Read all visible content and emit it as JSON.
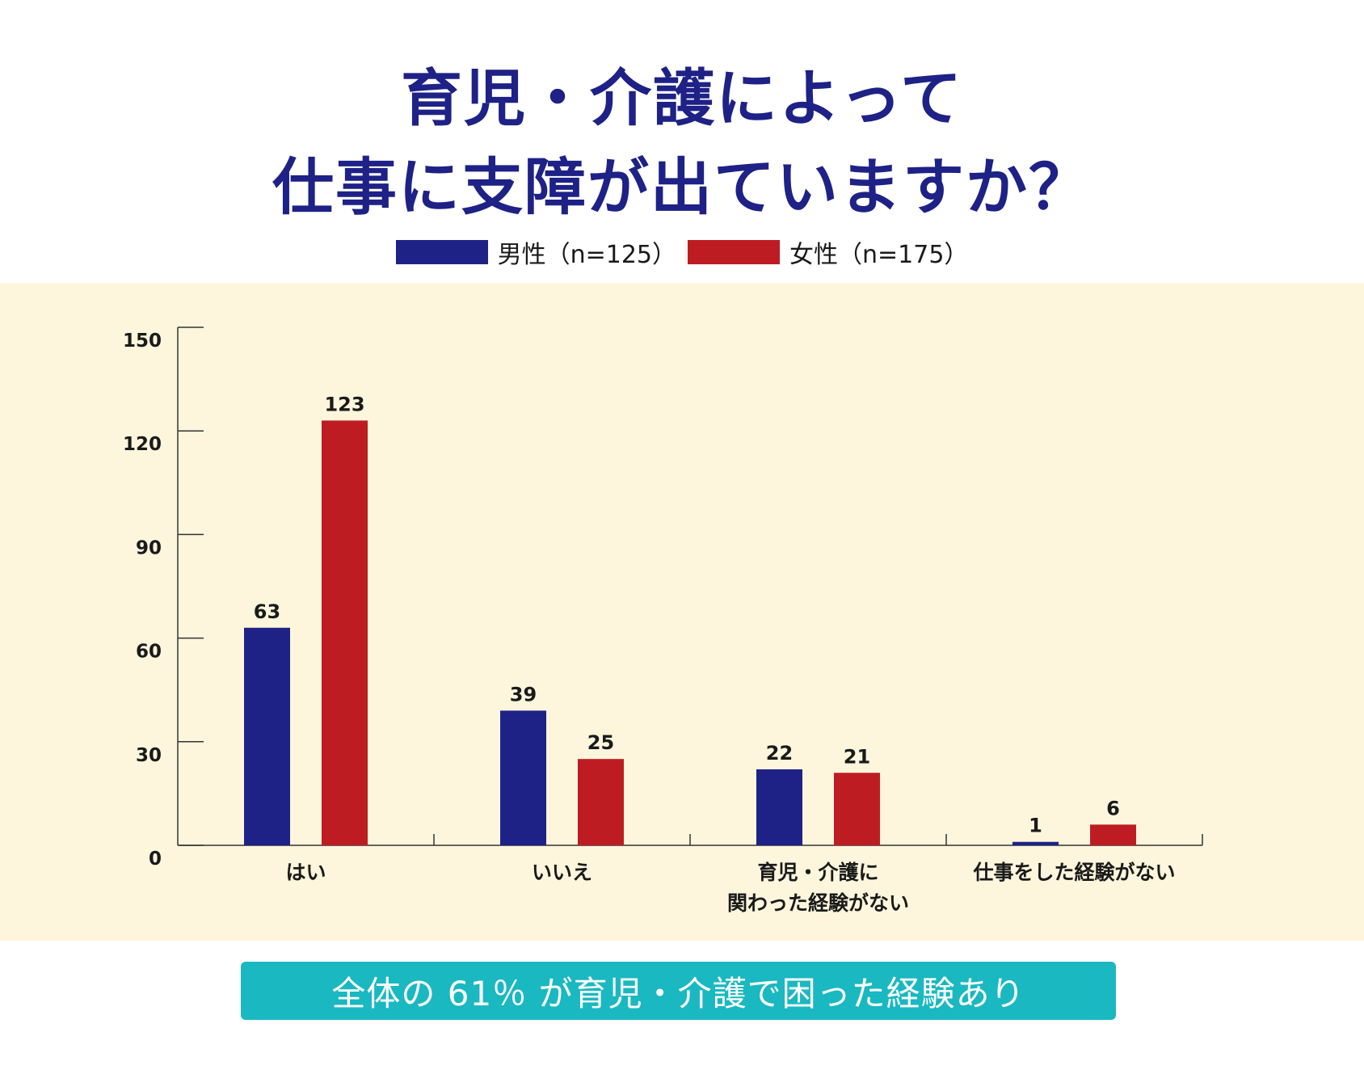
{
  "title_lines": [
    "育児・介護によって",
    "仕事に支障が出ていますか？"
  ],
  "legend": [
    {
      "label": "男性（n=125）",
      "color": "#1e2186"
    },
    {
      "label": "女性（n=175）",
      "color": "#be1c23"
    }
  ],
  "banner_text": "全体の 61％ が育児・介護で困った経験あり",
  "colors": {
    "axis": "#333333",
    "panel_bg": "#fdf6dc",
    "banner_bg": "#1ab8c1"
  },
  "chart_data": {
    "type": "bar",
    "categories": [
      [
        "はい"
      ],
      [
        "いいえ"
      ],
      [
        "育児・介護に",
        "関わった経験がない"
      ],
      [
        "仕事をした経験がない"
      ]
    ],
    "series": [
      {
        "name": "男性（n=125）",
        "color": "#1e2186",
        "values": [
          63,
          39,
          22,
          1
        ]
      },
      {
        "name": "女性（n=175）",
        "color": "#be1c23",
        "values": [
          123,
          25,
          21,
          6
        ]
      }
    ],
    "ylim": [
      0,
      150
    ],
    "yticks": [
      0,
      30,
      60,
      90,
      120,
      150
    ],
    "grid": false,
    "legend_position": "top-center"
  }
}
